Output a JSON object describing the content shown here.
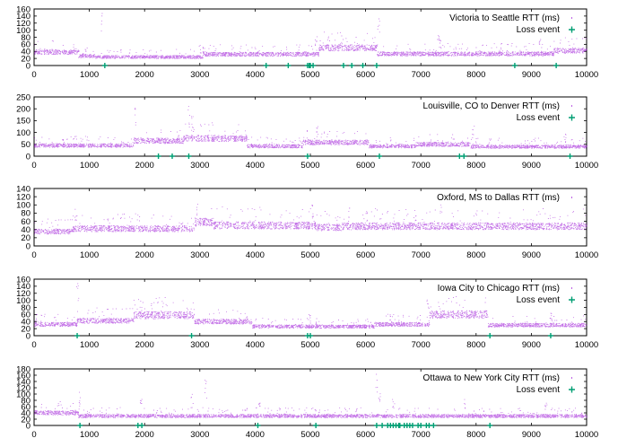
{
  "colors": {
    "rtt": "#9400d3",
    "loss": "#009e73",
    "axis": "#000000"
  },
  "x_ticks": [
    0,
    1000,
    2000,
    3000,
    4000,
    5000,
    6000,
    7000,
    8000,
    9000,
    10000
  ],
  "chart_data": [
    {
      "type": "scatter",
      "legend_rtt": "Victoria to Seattle RTT (ms)",
      "legend_loss": "Loss event",
      "xlim": [
        0,
        10000
      ],
      "ylim": [
        0,
        160
      ],
      "y_ticks": [
        0,
        20,
        40,
        60,
        80,
        100,
        120,
        140,
        160
      ],
      "rtt_levels": [
        [
          0,
          800,
          38
        ],
        [
          800,
          1100,
          27
        ],
        [
          1100,
          3050,
          24
        ],
        [
          3050,
          5150,
          32
        ],
        [
          5150,
          6200,
          50
        ],
        [
          6200,
          8400,
          33
        ],
        [
          8400,
          9400,
          33
        ],
        [
          9400,
          10000,
          42
        ]
      ],
      "rtt_spikes": [
        [
          1230,
          150
        ],
        [
          3000,
          60
        ],
        [
          3070,
          55
        ],
        [
          5100,
          95
        ],
        [
          6230,
          150
        ],
        [
          7310,
          90
        ],
        [
          7350,
          75
        ],
        [
          9150,
          80
        ]
      ],
      "loss_events": [
        1280,
        4200,
        4600,
        4950,
        4980,
        5000,
        5050,
        5600,
        5750,
        5950,
        6200,
        8700,
        9450
      ]
    },
    {
      "type": "scatter",
      "legend_rtt": "Louisville, CO to Denver RTT (ms)",
      "legend_loss": "Loss event",
      "xlim": [
        0,
        10000
      ],
      "ylim": [
        0,
        250
      ],
      "y_ticks": [
        0,
        50,
        100,
        150,
        200,
        250
      ],
      "rtt_levels": [
        [
          0,
          1800,
          45
        ],
        [
          1800,
          2700,
          65
        ],
        [
          2700,
          3850,
          75
        ],
        [
          3850,
          4850,
          42
        ],
        [
          4850,
          6050,
          58
        ],
        [
          6050,
          6900,
          42
        ],
        [
          6900,
          7900,
          50
        ],
        [
          7900,
          10000,
          40
        ]
      ],
      "rtt_spikes": [
        [
          1830,
          210
        ],
        [
          2800,
          210
        ],
        [
          2850,
          175
        ],
        [
          4950,
          110
        ],
        [
          5120,
          145
        ],
        [
          7940,
          130
        ],
        [
          9600,
          100
        ]
      ],
      "loss_events": [
        2250,
        2500,
        2800,
        4950,
        6250,
        7700,
        7780,
        9700
      ]
    },
    {
      "type": "scatter",
      "legend_rtt": "Oxford, MS to Dallas RTT (ms)",
      "xlim": [
        0,
        10000
      ],
      "ylim": [
        0,
        140
      ],
      "y_ticks": [
        0,
        20,
        40,
        60,
        80,
        100,
        120,
        140
      ],
      "rtt_levels": [
        [
          0,
          700,
          35
        ],
        [
          700,
          2900,
          42
        ],
        [
          2900,
          3250,
          58
        ],
        [
          3250,
          5100,
          50
        ],
        [
          5100,
          5550,
          45
        ],
        [
          5550,
          8100,
          48
        ],
        [
          8100,
          10000,
          48
        ]
      ],
      "rtt_spikes": [
        [
          750,
          90
        ],
        [
          2940,
          105
        ],
        [
          5040,
          100
        ],
        [
          5690,
          95
        ],
        [
          6020,
          90
        ],
        [
          6890,
          95
        ],
        [
          7360,
          100
        ]
      ],
      "loss_events": []
    },
    {
      "type": "scatter",
      "legend_rtt": "Iowa City to Chicago RTT (ms)",
      "legend_loss": "Loss event",
      "xlim": [
        0,
        10000
      ],
      "ylim": [
        0,
        160
      ],
      "y_ticks": [
        0,
        20,
        40,
        60,
        80,
        100,
        120,
        140,
        160
      ],
      "rtt_levels": [
        [
          0,
          770,
          32
        ],
        [
          770,
          1800,
          42
        ],
        [
          1800,
          2900,
          58
        ],
        [
          2900,
          3950,
          40
        ],
        [
          3950,
          6150,
          26
        ],
        [
          6150,
          7150,
          32
        ],
        [
          7150,
          8200,
          60
        ],
        [
          8200,
          10000,
          30
        ]
      ],
      "rtt_spikes": [
        [
          780,
          155
        ],
        [
          1930,
          100
        ],
        [
          4980,
          60
        ],
        [
          5100,
          50
        ],
        [
          6450,
          60
        ],
        [
          7120,
          105
        ],
        [
          9350,
          70
        ]
      ],
      "loss_events": [
        780,
        2850,
        4950,
        5000,
        8250,
        9350
      ]
    },
    {
      "type": "scatter",
      "legend_rtt": "Ottawa to New York City RTT (ms)",
      "legend_loss": "Loss event",
      "xlim": [
        0,
        10000
      ],
      "ylim": [
        0,
        180
      ],
      "y_ticks": [
        0,
        20,
        40,
        60,
        80,
        100,
        120,
        140,
        160,
        180
      ],
      "rtt_levels": [
        [
          0,
          800,
          40
        ],
        [
          800,
          10000,
          30
        ]
      ],
      "rtt_spikes": [
        [
          820,
          110
        ],
        [
          1930,
          90
        ],
        [
          2850,
          100
        ],
        [
          3100,
          150
        ],
        [
          4080,
          100
        ],
        [
          6190,
          170
        ],
        [
          6250,
          120
        ],
        [
          6500,
          100
        ],
        [
          7800,
          95
        ],
        [
          9260,
          85
        ]
      ],
      "loss_events": [
        830,
        1880,
        1950,
        4050,
        5100,
        6200,
        6300,
        6400,
        6450,
        6500,
        6550,
        6600,
        6620,
        6700,
        6750,
        6800,
        6850,
        6950,
        7000,
        7100,
        7150,
        7230,
        8250
      ]
    }
  ]
}
